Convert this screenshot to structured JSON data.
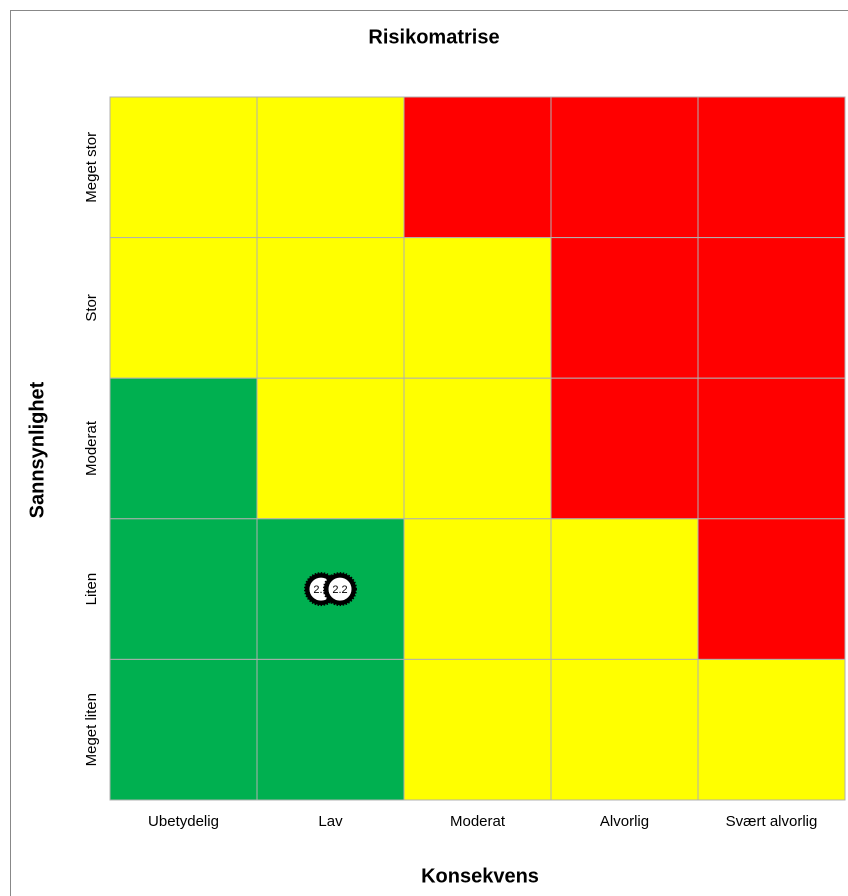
{
  "chart_data": {
    "type": "risk-matrix",
    "title": "Risikomatrise",
    "x_label": "Konsekvens",
    "y_label": "Sannsynlighet",
    "x_categories": [
      "Ubetydelig",
      "Lav",
      "Moderat",
      "Alvorlig",
      "Svært alvorlig"
    ],
    "y_categories": [
      "Meget stor",
      "Stor",
      "Moderat",
      "Liten",
      "Meget liten"
    ],
    "cells": [
      [
        "#ffff00",
        "#ffff00",
        "#ff0000",
        "#ff0000",
        "#ff0000"
      ],
      [
        "#ffff00",
        "#ffff00",
        "#ffff00",
        "#ff0000",
        "#ff0000"
      ],
      [
        "#00b050",
        "#ffff00",
        "#ffff00",
        "#ff0000",
        "#ff0000"
      ],
      [
        "#00b050",
        "#00b050",
        "#ffff00",
        "#ffff00",
        "#ff0000"
      ],
      [
        "#00b050",
        "#00b050",
        "#ffff00",
        "#ffff00",
        "#ffff00"
      ]
    ],
    "markers": [
      {
        "label": "2.1",
        "x": "Lav",
        "y": "Liten"
      },
      {
        "label": "2.2",
        "x": "Lav",
        "y": "Liten"
      }
    ]
  }
}
